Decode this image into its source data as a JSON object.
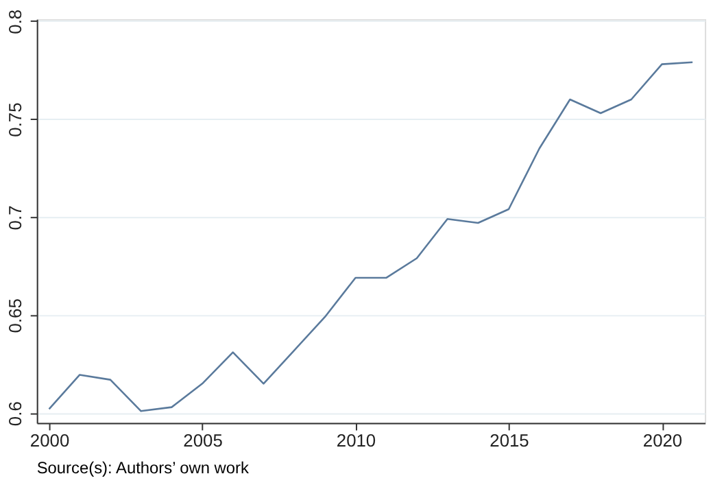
{
  "chart_data": {
    "type": "line",
    "x": [
      2000,
      2001,
      2002,
      2003,
      2004,
      2005,
      2006,
      2007,
      2008,
      2009,
      2010,
      2011,
      2012,
      2013,
      2014,
      2015,
      2016,
      2017,
      2018,
      2019,
      2020,
      2021
    ],
    "series": [
      {
        "color": "#5a7a9c",
        "values": [
          0.602,
          0.6195,
          0.617,
          0.601,
          0.603,
          0.615,
          0.631,
          0.615,
          0.632,
          0.649,
          0.669,
          0.669,
          0.679,
          0.699,
          0.697,
          0.704,
          0.735,
          0.76,
          0.753,
          0.76,
          0.778,
          0.779
        ]
      }
    ],
    "xlim": [
      1999.6,
      2021.4
    ],
    "xticks": [
      2000,
      2005,
      2010,
      2015,
      2020
    ],
    "ylim": [
      0.595,
      0.801
    ],
    "yticks": [
      0.6,
      0.65,
      0.7,
      0.75,
      0.8
    ],
    "grid": "y",
    "legend": false,
    "marker": "none",
    "line_style": "solid",
    "annotations": [
      "Source(s): Authors’ own work"
    ]
  }
}
